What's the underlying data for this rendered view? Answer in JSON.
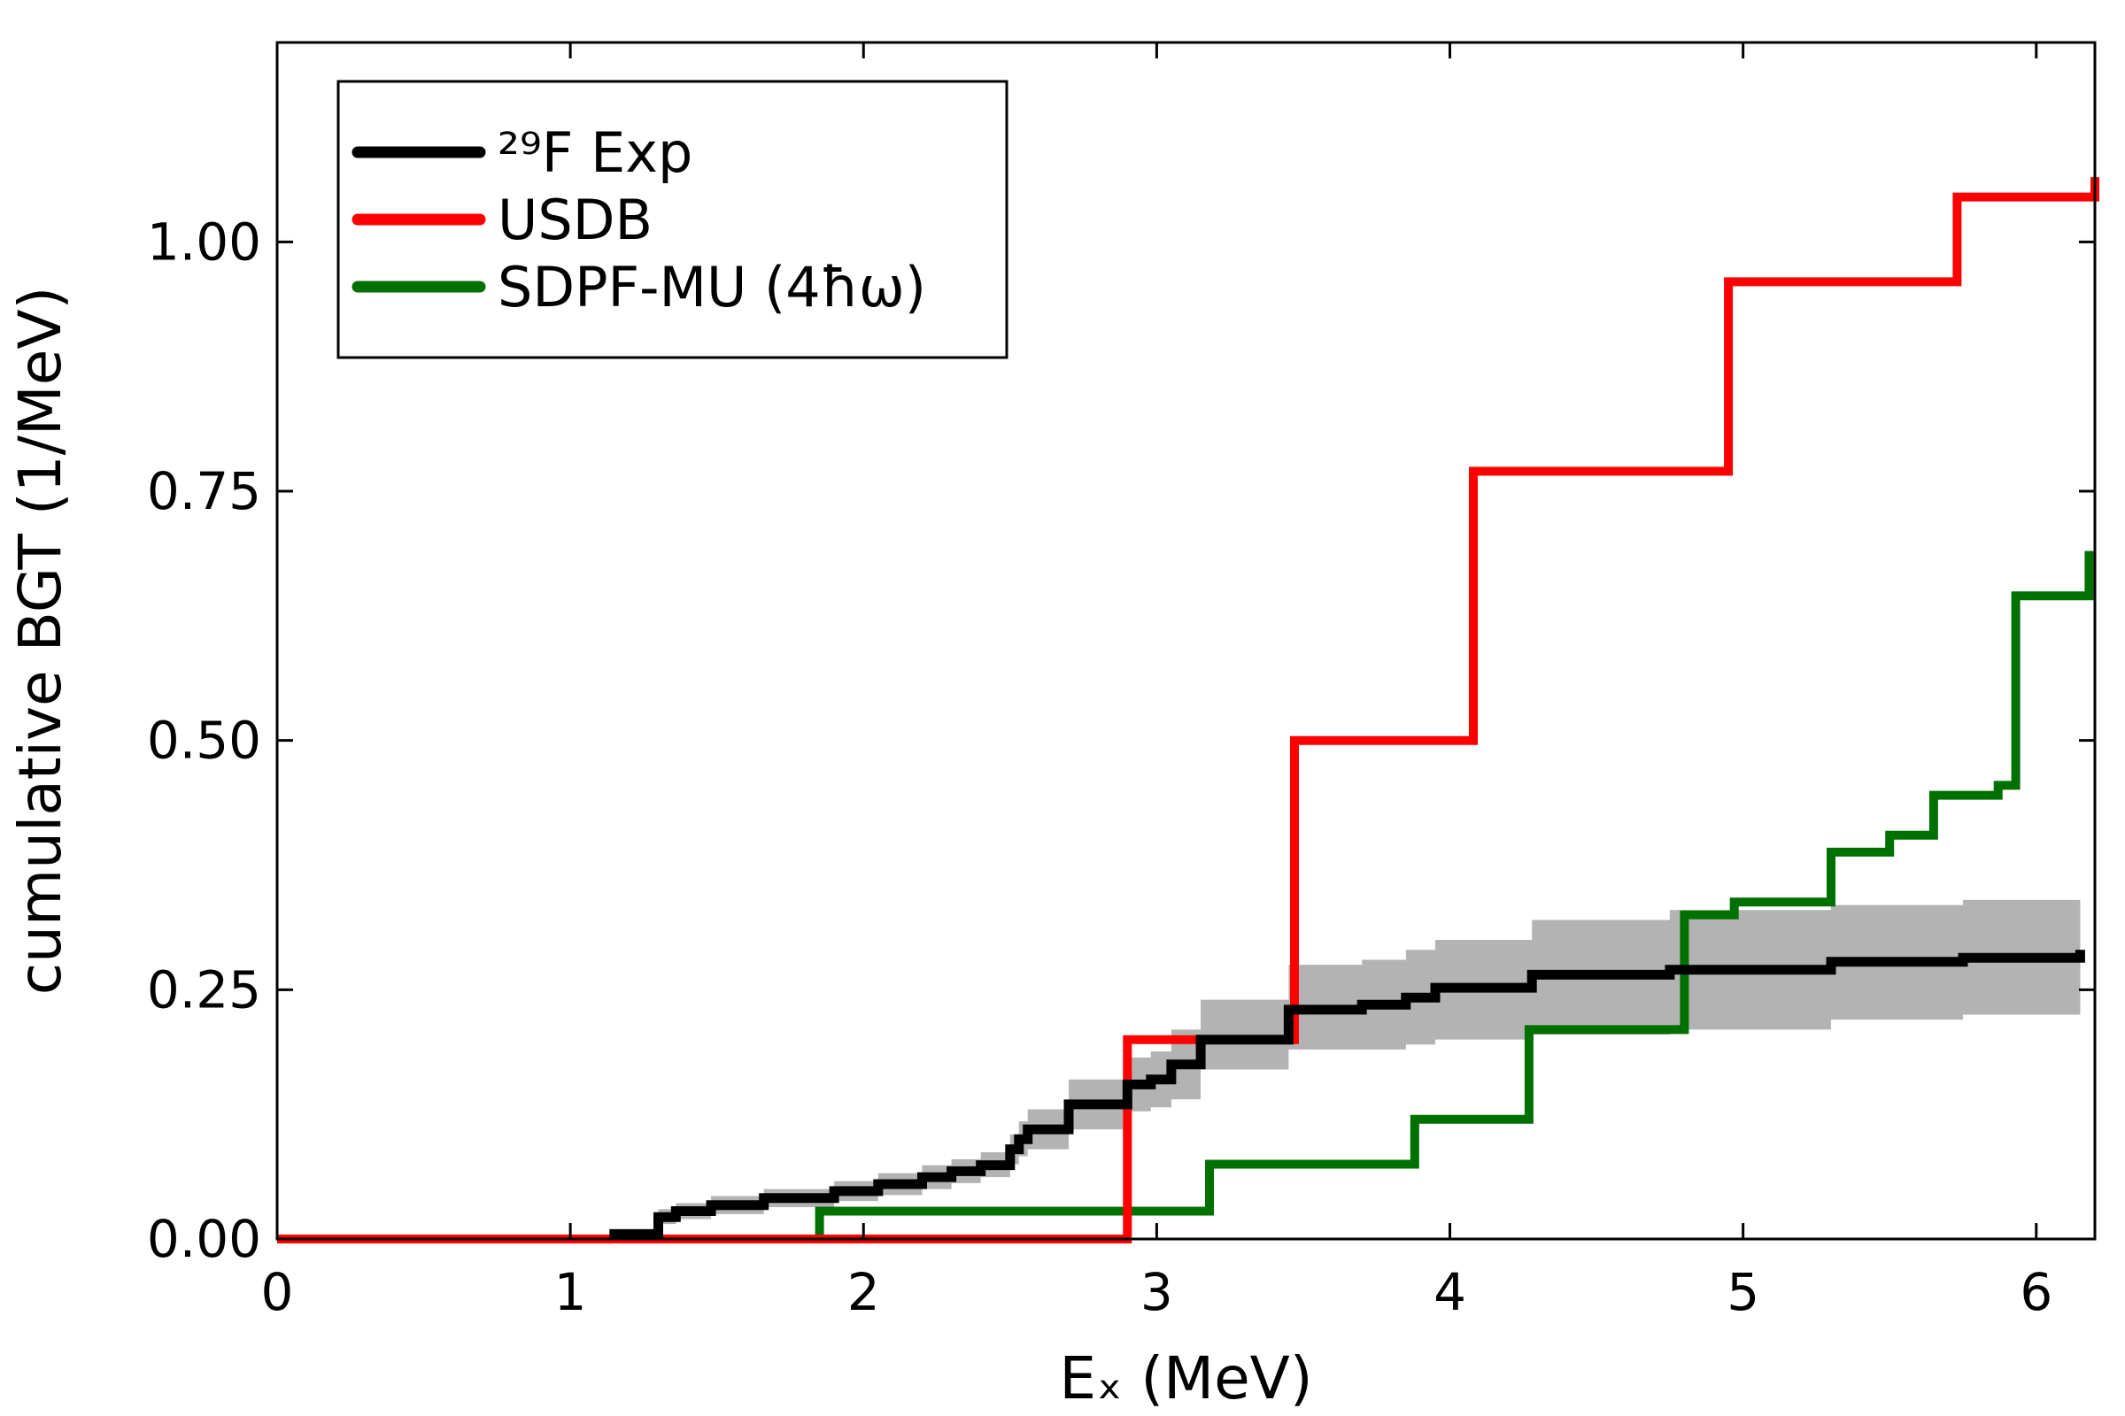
{
  "chart_data": {
    "type": "line",
    "step": true,
    "xlabel": "Eₓ (MeV)",
    "ylabel": "cumulative BGT (1/MeV)",
    "xlim": [
      0,
      6.2
    ],
    "ylim": [
      0,
      1.2
    ],
    "xticks": [
      0,
      1,
      2,
      3,
      4,
      5,
      6
    ],
    "xtick_labels": [
      "0",
      "1",
      "2",
      "3",
      "4",
      "5",
      "6"
    ],
    "yticks": [
      0,
      0.25,
      0.5,
      0.75,
      1.0
    ],
    "ytick_labels": [
      "0.00",
      "0.25",
      "0.50",
      "0.75",
      "1.00"
    ],
    "grid": false,
    "legend_position": "top-left",
    "series": [
      {
        "name": "²⁹F Exp",
        "color": "#000000",
        "x": [
          1.15,
          1.3,
          1.36,
          1.48,
          1.66,
          1.9,
          2.05,
          2.2,
          2.3,
          2.4,
          2.5,
          2.53,
          2.56,
          2.7,
          2.9,
          2.98,
          3.05,
          3.15,
          3.45,
          3.7,
          3.85,
          3.95,
          4.28,
          4.75,
          5.3,
          5.75,
          6.15
        ],
        "y": [
          0.005,
          0.022,
          0.028,
          0.034,
          0.041,
          0.048,
          0.055,
          0.062,
          0.068,
          0.074,
          0.09,
          0.1,
          0.11,
          0.135,
          0.155,
          0.16,
          0.175,
          0.2,
          0.23,
          0.235,
          0.242,
          0.252,
          0.265,
          0.27,
          0.278,
          0.282,
          0.29
        ],
        "band_lower": [
          0.002,
          0.015,
          0.02,
          0.025,
          0.032,
          0.038,
          0.044,
          0.05,
          0.056,
          0.062,
          0.075,
          0.083,
          0.09,
          0.11,
          0.128,
          0.132,
          0.14,
          0.17,
          0.19,
          0.19,
          0.195,
          0.2,
          0.205,
          0.21,
          0.22,
          0.225,
          0.225
        ],
        "band_upper": [
          0.008,
          0.03,
          0.036,
          0.043,
          0.05,
          0.058,
          0.066,
          0.074,
          0.08,
          0.087,
          0.105,
          0.118,
          0.13,
          0.16,
          0.182,
          0.188,
          0.21,
          0.24,
          0.275,
          0.28,
          0.29,
          0.3,
          0.32,
          0.33,
          0.335,
          0.34,
          0.34
        ]
      },
      {
        "name": "USDB",
        "color": "#ff0000",
        "x": [
          0,
          2.9,
          3.47,
          4.08,
          4.95,
          5.73,
          6.2
        ],
        "y": [
          0,
          0.2,
          0.5,
          0.77,
          0.96,
          1.045,
          1.065
        ]
      },
      {
        "name": "SDPF-MU (4ħω)",
        "color": "#007000",
        "x": [
          0.58,
          1.85,
          3.18,
          3.88,
          4.27,
          4.8,
          4.97,
          5.3,
          5.5,
          5.65,
          5.87,
          5.93,
          6.18
        ],
        "y": [
          0,
          0.028,
          0.075,
          0.12,
          0.21,
          0.325,
          0.338,
          0.388,
          0.405,
          0.445,
          0.455,
          0.645,
          0.69
        ]
      }
    ]
  }
}
